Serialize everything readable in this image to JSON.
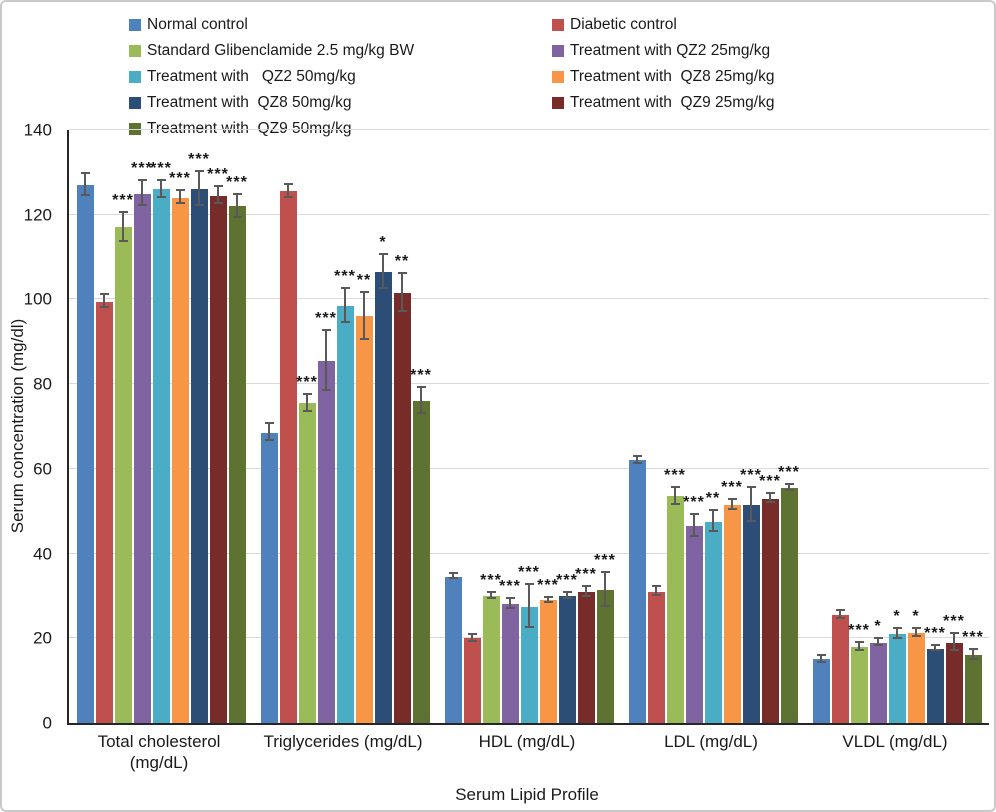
{
  "chart_data": {
    "type": "bar",
    "title": "",
    "xlabel": "Serum Lipid Profile",
    "ylabel": "Serum concentration (mg/dl)",
    "ylim": [
      0,
      140
    ],
    "ytick_step": 20,
    "grid": true,
    "legend_position": "top-two-columns",
    "error_bars": true,
    "categories": [
      "Total cholesterol (mg/dL)",
      "Triglycerides (mg/dL)",
      "HDL (mg/dL)",
      "LDL (mg/dL)",
      "VLDL (mg/dL)"
    ],
    "series": [
      {
        "name": "Normal control",
        "color": "#4F81BD",
        "values": [
          127,
          68.5,
          34.5,
          62,
          15
        ],
        "errors": [
          2.5,
          2,
          0.6,
          0.8,
          0.8
        ],
        "annotations": [
          "",
          "",
          "",
          "",
          ""
        ]
      },
      {
        "name": "Diabetic control",
        "color": "#C0504D",
        "values": [
          99.5,
          125.5,
          20,
          31,
          25.5
        ],
        "errors": [
          1.5,
          1.5,
          0.8,
          1,
          1
        ],
        "annotations": [
          "",
          "",
          "",
          "",
          ""
        ]
      },
      {
        "name": "Standard Glibenclamide 2.5 mg/kg BW",
        "color": "#9BBB59",
        "values": [
          117,
          75.5,
          30,
          53.5,
          18
        ],
        "errors": [
          3.5,
          2,
          0.8,
          2,
          1
        ],
        "annotations": [
          "***",
          "***",
          "***",
          "***",
          "***"
        ]
      },
      {
        "name": "Treatment with QZ2 25mg/kg",
        "color": "#8064A2",
        "values": [
          125,
          85.5,
          28,
          46.5,
          19
        ],
        "errors": [
          3,
          7,
          1.2,
          2.5,
          0.8
        ],
        "annotations": [
          "***",
          "***",
          "***",
          "***",
          "*"
        ]
      },
      {
        "name": "Treatment with   QZ2 50mg/kg",
        "color": "#4BACC6",
        "values": [
          126,
          98.5,
          27.5,
          47.5,
          21
        ],
        "errors": [
          2,
          4,
          5,
          2.5,
          1.2
        ],
        "annotations": [
          "***",
          "***",
          "***",
          "**",
          "*"
        ]
      },
      {
        "name": "Treatment with  QZ8 25mg/kg",
        "color": "#F79646",
        "values": [
          124,
          96,
          29,
          51.5,
          21.3
        ],
        "errors": [
          1.5,
          5.5,
          0.6,
          1.2,
          1
        ],
        "annotations": [
          "***",
          "**",
          "***",
          "***",
          "*"
        ]
      },
      {
        "name": "Treatment with  QZ8 50mg/kg",
        "color": "#2C4D76",
        "values": [
          126,
          106.5,
          30,
          51.5,
          17.5
        ],
        "errors": [
          4,
          4,
          0.8,
          4,
          0.6
        ],
        "annotations": [
          "***",
          "*",
          "***",
          "***",
          "***"
        ]
      },
      {
        "name": "Treatment with  QZ9 25mg/kg",
        "color": "#772C2A",
        "values": [
          124.5,
          101.5,
          31,
          53,
          19
        ],
        "errors": [
          2,
          4.5,
          1.2,
          1,
          2
        ],
        "annotations": [
          "***",
          "**",
          "***",
          "***",
          "***"
        ]
      },
      {
        "name": "Treatment with  QZ9 50mg/kg",
        "color": "#5E7332",
        "values": [
          122,
          76,
          31.5,
          55.5,
          16
        ],
        "errors": [
          2.75,
          3,
          4,
          0.8,
          1.2
        ],
        "annotations": [
          "***",
          "***",
          "***",
          "***",
          "***"
        ]
      }
    ],
    "legend_columns": [
      [
        0,
        2,
        4,
        6,
        8
      ],
      [
        1,
        3,
        5,
        7
      ]
    ]
  }
}
